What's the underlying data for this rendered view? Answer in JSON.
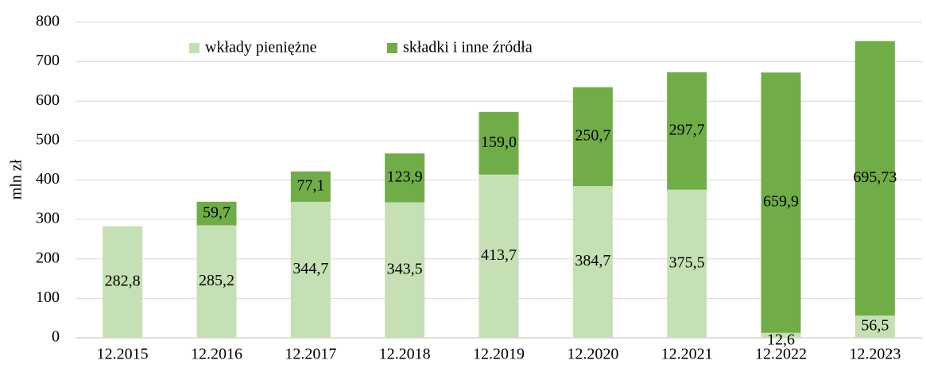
{
  "chart_data": {
    "type": "stacked_bar",
    "y_label": "mln zł",
    "categories": [
      "12.2015",
      "12.2016",
      "12.2017",
      "12.2018",
      "12.2019",
      "12.2020",
      "12.2021",
      "12.2022",
      "12.2023"
    ],
    "series": [
      {
        "name": "wkłady pieniężne",
        "color": "#c5e0b4",
        "values": [
          282.8,
          285.2,
          344.7,
          343.5,
          413.7,
          384.7,
          375.5,
          12.6,
          56.5
        ],
        "value_labels": [
          "282,8",
          "285,2",
          "344,7",
          "343,5",
          "413,7",
          "384,7",
          "375,5",
          "12,6",
          "56,5"
        ]
      },
      {
        "name": "składki i inne źródła",
        "color": "#70ad47",
        "values": [
          null,
          59.7,
          77.1,
          123.9,
          159.0,
          250.7,
          297.7,
          659.9,
          695.73
        ],
        "value_labels": [
          null,
          "59,7",
          "77,1",
          "123,9",
          "159,0",
          "250,7",
          "297,7",
          "659,9",
          "695,73"
        ]
      }
    ],
    "ylim": [
      0,
      800
    ],
    "yticks": [
      0,
      100,
      200,
      300,
      400,
      500,
      600,
      700,
      800
    ],
    "grid": true,
    "legend": "top"
  }
}
